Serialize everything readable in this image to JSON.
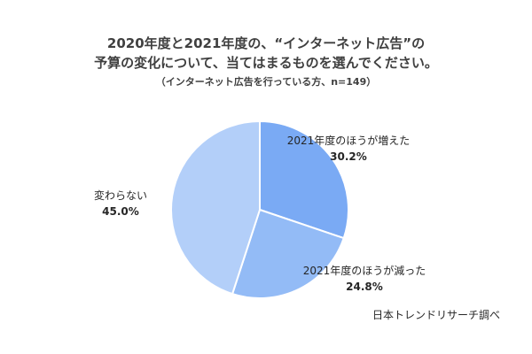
{
  "chart_data": {
    "type": "pie",
    "title_line1": "2020年度と2021年度の、“インターネット広告”の",
    "title_line2": "予算の変化について、当てはまるものを選んでください。",
    "subtitle": "（インターネット広告を行っている方、n=149）",
    "slices": [
      {
        "label": "2021年度のほうが増えた",
        "value": 30.2,
        "value_label": "30.2%",
        "color": "#7aaaf4"
      },
      {
        "label": "2021年度のほうが減った",
        "value": 24.8,
        "value_label": "24.8%",
        "color": "#93bbf6"
      },
      {
        "label": "変わらない",
        "value": 45.0,
        "value_label": "45.0%",
        "color": "#b3cff9"
      }
    ],
    "start_angle": "12 o'clock",
    "direction": "clockwise",
    "legend": "none (labels beside slices)"
  },
  "source": "日本トレンドリサーチ調べ"
}
